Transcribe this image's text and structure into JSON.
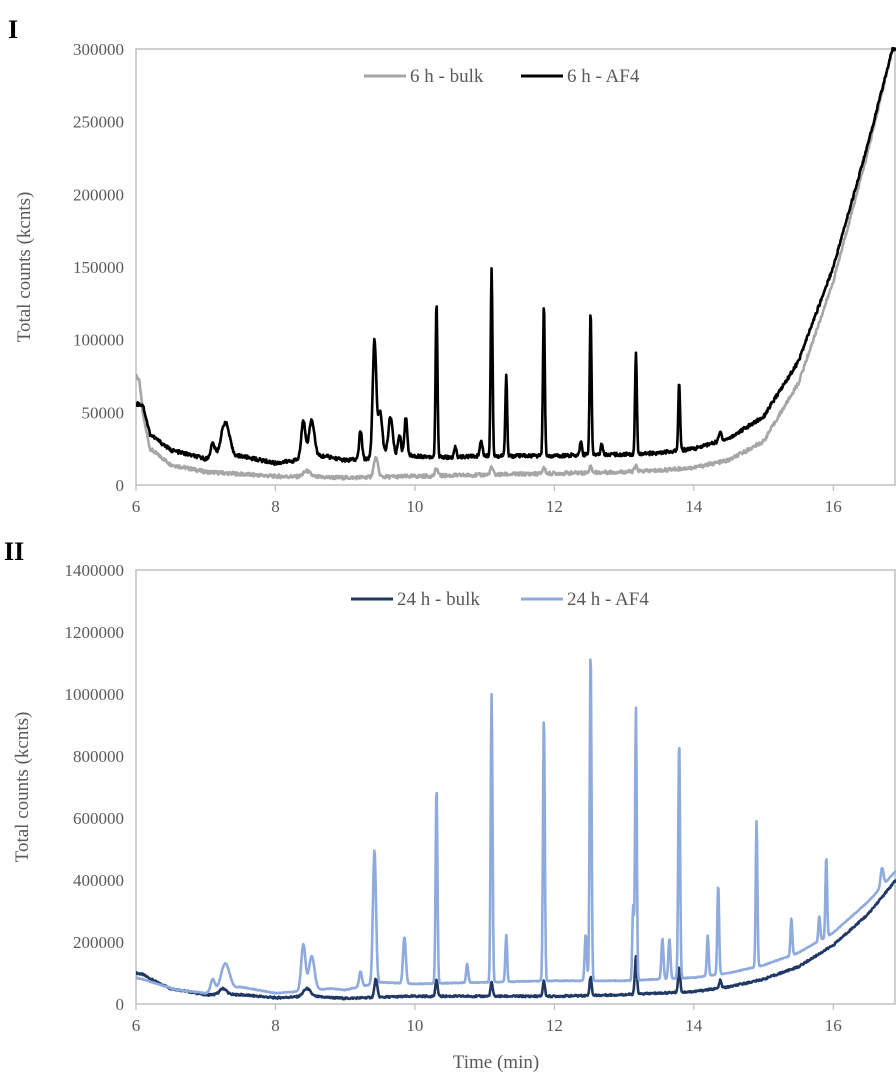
{
  "figure": {
    "panels": [
      {
        "panel_label": "I",
        "ylabel": "Total counts (kcnts)",
        "xlabel": "",
        "x_ticks": [
          "6",
          "8",
          "10",
          "12",
          "14",
          "16"
        ],
        "y_ticks": [
          "0",
          "50000",
          "100000",
          "150000",
          "200000",
          "250000",
          "300000"
        ],
        "series_names": [
          "6 h - bulk",
          "6 h - AF4"
        ],
        "series_colors": [
          "#a6a6a6",
          "#000000"
        ]
      },
      {
        "panel_label": "II",
        "ylabel": "Total counts (kcnts)",
        "xlabel": "Time (min)",
        "x_ticks": [
          "6",
          "8",
          "10",
          "12",
          "14",
          "16"
        ],
        "y_ticks": [
          "0",
          "200000",
          "400000",
          "600000",
          "800000",
          "1000000",
          "1200000",
          "1400000"
        ],
        "series_names": [
          "24 h - bulk",
          "24 h - AF4"
        ],
        "series_colors": [
          "#1f3864",
          "#8faadc"
        ]
      }
    ]
  },
  "chart_data": [
    {
      "type": "line",
      "panel": "I",
      "title": "",
      "xlabel": "",
      "ylabel": "Total counts (kcnts)",
      "xlim": [
        6,
        16.9
      ],
      "ylim": [
        0,
        300000
      ],
      "grid": false,
      "legend_position": "top-center",
      "series": [
        {
          "name": "6 h - bulk",
          "color": "#a6a6a6",
          "baseline": [
            [
              6.0,
              75000
            ],
            [
              6.05,
              72000
            ],
            [
              6.1,
              48000
            ],
            [
              6.2,
              25000
            ],
            [
              6.5,
              14000
            ],
            [
              7.0,
              9000
            ],
            [
              7.5,
              7500
            ],
            [
              8.0,
              6000
            ],
            [
              8.5,
              5500
            ],
            [
              9.0,
              5000
            ],
            [
              9.5,
              5500
            ],
            [
              10.0,
              6000
            ],
            [
              11.0,
              7000
            ],
            [
              12.0,
              8000
            ],
            [
              13.0,
              9000
            ],
            [
              13.5,
              10000
            ],
            [
              14.0,
              12000
            ],
            [
              14.5,
              17000
            ],
            [
              15.0,
              30000
            ],
            [
              15.5,
              70000
            ],
            [
              16.0,
              140000
            ],
            [
              16.5,
              230000
            ],
            [
              16.85,
              300000
            ],
            [
              16.9,
              300000
            ]
          ],
          "peaks": [
            [
              9.44,
              13000,
              0.03
            ],
            [
              10.31,
              5000,
              0.02
            ],
            [
              11.1,
              5000,
              0.02
            ],
            [
              11.85,
              4000,
              0.02
            ],
            [
              12.52,
              4000,
              0.02
            ],
            [
              13.17,
              3500,
              0.02
            ],
            [
              8.45,
              4000,
              0.05
            ]
          ]
        },
        {
          "name": "6 h - AF4",
          "color": "#000000",
          "baseline": [
            [
              6.0,
              56000
            ],
            [
              6.1,
              55000
            ],
            [
              6.2,
              35000
            ],
            [
              6.5,
              24000
            ],
            [
              7.0,
              18000
            ],
            [
              7.5,
              20000
            ],
            [
              8.0,
              15000
            ],
            [
              8.3,
              17000
            ],
            [
              8.7,
              20000
            ],
            [
              9.0,
              17000
            ],
            [
              9.3,
              18000
            ],
            [
              9.6,
              22000
            ],
            [
              10.0,
              20000
            ],
            [
              10.5,
              19000
            ],
            [
              11.0,
              20000
            ],
            [
              11.5,
              20000
            ],
            [
              12.0,
              20000
            ],
            [
              12.5,
              21000
            ],
            [
              13.0,
              21000
            ],
            [
              13.5,
              22000
            ],
            [
              14.0,
              25000
            ],
            [
              14.5,
              32000
            ],
            [
              15.0,
              47000
            ],
            [
              15.5,
              85000
            ],
            [
              16.0,
              150000
            ],
            [
              16.5,
              235000
            ],
            [
              16.85,
              300000
            ],
            [
              16.9,
              300000
            ]
          ],
          "peaks": [
            [
              7.1,
              10000,
              0.03
            ],
            [
              7.28,
              24000,
              0.06
            ],
            [
              8.4,
              26000,
              0.03
            ],
            [
              8.52,
              26000,
              0.04
            ],
            [
              9.22,
              20000,
              0.02
            ],
            [
              9.42,
              80000,
              0.025
            ],
            [
              9.5,
              30000,
              0.03
            ],
            [
              9.65,
              25000,
              0.03
            ],
            [
              9.78,
              14000,
              0.02
            ],
            [
              9.87,
              26000,
              0.02
            ],
            [
              10.31,
              108000,
              0.013
            ],
            [
              10.58,
              7000,
              0.015
            ],
            [
              10.95,
              10000,
              0.02
            ],
            [
              11.1,
              130000,
              0.013
            ],
            [
              11.31,
              55000,
              0.013
            ],
            [
              11.85,
              104000,
              0.013
            ],
            [
              12.38,
              9000,
              0.015
            ],
            [
              12.52,
              98000,
              0.013
            ],
            [
              12.68,
              8000,
              0.015
            ],
            [
              13.17,
              70000,
              0.013
            ],
            [
              13.79,
              47000,
              0.013
            ],
            [
              14.38,
              6000,
              0.02
            ]
          ]
        }
      ]
    },
    {
      "type": "line",
      "panel": "II",
      "title": "",
      "xlabel": "Time (min)",
      "ylabel": "Total counts (kcnts)",
      "xlim": [
        6,
        16.9
      ],
      "ylim": [
        0,
        1400000
      ],
      "grid": false,
      "legend_position": "top-center",
      "series": [
        {
          "name": "24 h - bulk",
          "color": "#1f3864",
          "baseline": [
            [
              6.0,
              100000
            ],
            [
              6.1,
              95000
            ],
            [
              6.3,
              70000
            ],
            [
              6.5,
              50000
            ],
            [
              7.0,
              30000
            ],
            [
              7.5,
              30000
            ],
            [
              8.0,
              20000
            ],
            [
              8.5,
              25000
            ],
            [
              9.0,
              18000
            ],
            [
              9.5,
              22000
            ],
            [
              10.0,
              25000
            ],
            [
              11.0,
              25000
            ],
            [
              12.0,
              25000
            ],
            [
              13.0,
              30000
            ],
            [
              14.0,
              40000
            ],
            [
              14.5,
              55000
            ],
            [
              15.0,
              80000
            ],
            [
              15.5,
              120000
            ],
            [
              16.0,
              190000
            ],
            [
              16.5,
              290000
            ],
            [
              16.9,
              400000
            ]
          ],
          "peaks": [
            [
              7.25,
              20000,
              0.05
            ],
            [
              8.45,
              25000,
              0.05
            ],
            [
              9.44,
              60000,
              0.02
            ],
            [
              10.31,
              55000,
              0.015
            ],
            [
              11.1,
              45000,
              0.015
            ],
            [
              11.85,
              50000,
              0.015
            ],
            [
              12.52,
              60000,
              0.015
            ],
            [
              13.17,
              120000,
              0.015
            ],
            [
              13.79,
              80000,
              0.015
            ],
            [
              14.38,
              25000,
              0.015
            ]
          ]
        },
        {
          "name": "24 h - AF4",
          "color": "#8faadc",
          "baseline": [
            [
              6.0,
              85000
            ],
            [
              6.1,
              80000
            ],
            [
              6.3,
              65000
            ],
            [
              6.6,
              45000
            ],
            [
              7.0,
              35000
            ],
            [
              7.5,
              55000
            ],
            [
              8.0,
              35000
            ],
            [
              8.3,
              40000
            ],
            [
              8.8,
              50000
            ],
            [
              9.0,
              45000
            ],
            [
              9.5,
              70000
            ],
            [
              10.0,
              65000
            ],
            [
              11.0,
              70000
            ],
            [
              12.0,
              75000
            ],
            [
              13.0,
              75000
            ],
            [
              14.0,
              85000
            ],
            [
              14.5,
              100000
            ],
            [
              15.0,
              125000
            ],
            [
              15.5,
              165000
            ],
            [
              16.0,
              230000
            ],
            [
              16.5,
              330000
            ],
            [
              16.9,
              430000
            ]
          ],
          "peaks": [
            [
              7.1,
              40000,
              0.03
            ],
            [
              7.28,
              85000,
              0.06
            ],
            [
              8.4,
              150000,
              0.03
            ],
            [
              8.52,
              110000,
              0.04
            ],
            [
              9.22,
              50000,
              0.02
            ],
            [
              9.42,
              430000,
              0.022
            ],
            [
              9.85,
              150000,
              0.02
            ],
            [
              10.31,
              635000,
              0.013
            ],
            [
              10.75,
              60000,
              0.015
            ],
            [
              11.1,
              930000,
              0.013
            ],
            [
              11.31,
              150000,
              0.013
            ],
            [
              11.85,
              855000,
              0.013
            ],
            [
              12.45,
              150000,
              0.015
            ],
            [
              12.52,
              1070000,
              0.013
            ],
            [
              13.13,
              240000,
              0.012
            ],
            [
              13.17,
              880000,
              0.012
            ],
            [
              13.55,
              130000,
              0.015
            ],
            [
              13.65,
              130000,
              0.015
            ],
            [
              13.79,
              770000,
              0.013
            ],
            [
              14.2,
              130000,
              0.013
            ],
            [
              14.35,
              290000,
              0.013
            ],
            [
              14.9,
              470000,
              0.012
            ],
            [
              15.4,
              120000,
              0.013
            ],
            [
              15.8,
              80000,
              0.013
            ],
            [
              15.9,
              260000,
              0.012
            ],
            [
              16.7,
              60000,
              0.02
            ]
          ]
        }
      ]
    }
  ]
}
